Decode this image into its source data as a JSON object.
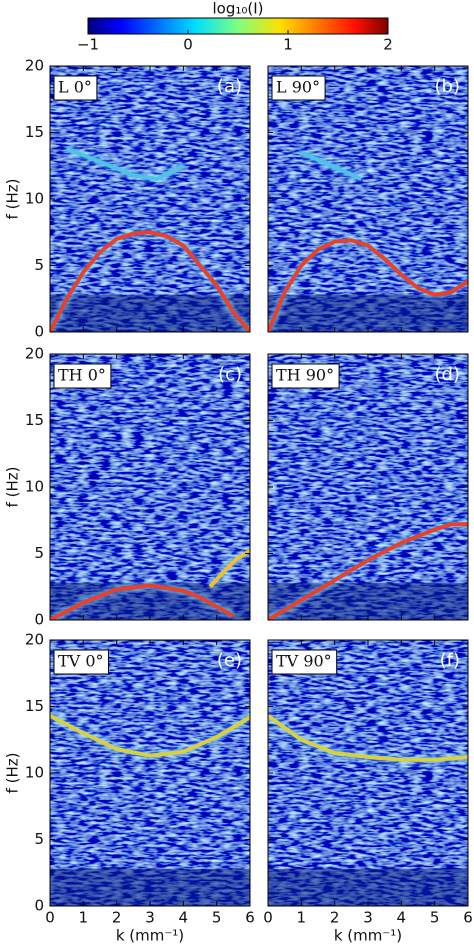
{
  "colorbar": {
    "label": "log₁₀(I)",
    "lim": [
      -1,
      2
    ],
    "ticks": [
      {
        "value": -1,
        "label": "−1"
      },
      0,
      1,
      2
    ]
  },
  "chart_data": [
    {
      "type": "heatmap",
      "label": "L 0°",
      "tag": "(a)",
      "ylabel": "f (Hz)",
      "xlim": [
        0,
        6
      ],
      "ylim": [
        0,
        20
      ],
      "xticks": [
        0,
        1,
        2,
        3,
        4,
        5,
        6
      ],
      "yticks": [
        0,
        5,
        10,
        15,
        20
      ],
      "xtick_labels": false,
      "ytick_labels": true,
      "curves": [
        {
          "color": "#e8402a",
          "x": [
            0,
            0.5,
            1,
            1.5,
            2,
            2.5,
            3,
            3.5,
            4,
            4.5,
            5,
            5.5,
            6
          ],
          "y": [
            0,
            2.5,
            4.5,
            6,
            7,
            7.4,
            7.5,
            7.2,
            6.5,
            5,
            3.5,
            1.5,
            0
          ]
        },
        {
          "color": "#4fc3e6",
          "x": [
            0.5,
            1.5,
            2.5,
            3.2,
            4
          ],
          "y": [
            13.8,
            12.8,
            11.8,
            11.5,
            12.5
          ]
        }
      ]
    },
    {
      "type": "heatmap",
      "label": "L 90°",
      "tag": "(b)",
      "xlim": [
        0,
        6
      ],
      "ylim": [
        0,
        20
      ],
      "xticks": [
        0,
        1,
        2,
        3,
        4,
        5,
        6
      ],
      "yticks": [
        0,
        5,
        10,
        15,
        20
      ],
      "xtick_labels": false,
      "ytick_labels": false,
      "curves": [
        {
          "color": "#e8402a",
          "x": [
            0,
            0.5,
            1,
            1.5,
            2,
            2.5,
            3,
            3.5,
            4,
            4.5,
            5,
            5.5,
            6
          ],
          "y": [
            0,
            3,
            5,
            6.2,
            6.8,
            6.9,
            6.5,
            5.5,
            4.3,
            3.3,
            2.8,
            3,
            3.8
          ]
        },
        {
          "color": "#4fc3e6",
          "x": [
            1,
            2,
            2.8
          ],
          "y": [
            13.5,
            12.4,
            11.5
          ]
        }
      ]
    },
    {
      "type": "heatmap",
      "label": "TH 0°",
      "tag": "(c)",
      "ylabel": "f (Hz)",
      "xlim": [
        0,
        6
      ],
      "ylim": [
        0,
        20
      ],
      "xticks": [
        0,
        1,
        2,
        3,
        4,
        5,
        6
      ],
      "yticks": [
        0,
        5,
        10,
        15,
        20
      ],
      "xtick_labels": false,
      "ytick_labels": true,
      "curves": [
        {
          "color": "#e8402a",
          "x": [
            0,
            1,
            2,
            3,
            4,
            4.5,
            5,
            5.5
          ],
          "y": [
            0,
            1.3,
            2.3,
            2.6,
            2.2,
            1.7,
            1,
            0.3
          ]
        },
        {
          "color": "#f0c030",
          "x": [
            4.8,
            5.2,
            5.6,
            6
          ],
          "y": [
            2.5,
            3.6,
            4.6,
            5.2
          ]
        }
      ]
    },
    {
      "type": "heatmap",
      "label": "TH 90°",
      "tag": "(d)",
      "xlim": [
        0,
        6
      ],
      "ylim": [
        0,
        20
      ],
      "xticks": [
        0,
        1,
        2,
        3,
        4,
        5,
        6
      ],
      "yticks": [
        0,
        5,
        10,
        15,
        20
      ],
      "xtick_labels": false,
      "ytick_labels": false,
      "curves": [
        {
          "color": "#e8402a",
          "x": [
            0,
            1,
            2,
            3,
            4,
            5,
            5.5,
            6
          ],
          "y": [
            0,
            1.5,
            3,
            4.5,
            5.8,
            6.8,
            7.2,
            7.2
          ]
        }
      ]
    },
    {
      "type": "heatmap",
      "label": "TV 0°",
      "tag": "(e)",
      "ylabel": "f (Hz)",
      "xlabel": "k (mm⁻¹)",
      "xlim": [
        0,
        6
      ],
      "ylim": [
        0,
        20
      ],
      "xticks": [
        0,
        1,
        2,
        3,
        4,
        5,
        6
      ],
      "yticks": [
        0,
        5,
        10,
        15,
        20
      ],
      "xtick_labels": true,
      "ytick_labels": true,
      "curves": [
        {
          "color": "#d8d040",
          "x": [
            0,
            1,
            2,
            3,
            4,
            5,
            6
          ],
          "y": [
            14.3,
            13,
            11.8,
            11.3,
            11.6,
            12.7,
            14.2
          ]
        }
      ]
    },
    {
      "type": "heatmap",
      "label": "TV 90°",
      "tag": "(f)",
      "xlabel": "k (mm⁻¹)",
      "xlim": [
        0,
        6
      ],
      "ylim": [
        0,
        20
      ],
      "xticks": [
        0,
        1,
        2,
        3,
        4,
        5,
        6
      ],
      "yticks": [
        0,
        5,
        10,
        15,
        20
      ],
      "xtick_labels": true,
      "ytick_labels": false,
      "curves": [
        {
          "color": "#d8d040",
          "x": [
            0,
            1,
            2,
            3,
            4,
            5,
            6
          ],
          "y": [
            14.3,
            12.5,
            11.5,
            11.2,
            11,
            11,
            11.2
          ]
        }
      ]
    }
  ]
}
